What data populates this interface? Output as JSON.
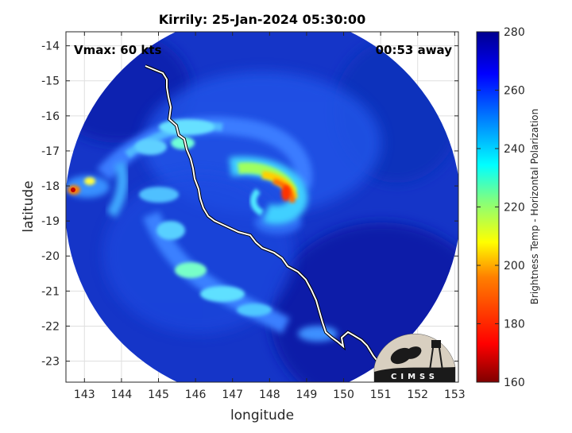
{
  "chart_data": {
    "type": "heatmap",
    "title": "Kirrily: 25-Jan-2024 05:30:00",
    "xlabel": "longitude",
    "ylabel": "latitude",
    "xlim": [
      142.5,
      153.1
    ],
    "ylim": [
      -23.6,
      -13.6
    ],
    "xticks": [
      143,
      144,
      145,
      146,
      147,
      148,
      149,
      150,
      151,
      152,
      153
    ],
    "yticks": [
      -14,
      -15,
      -16,
      -17,
      -18,
      -19,
      -20,
      -21,
      -22,
      -23
    ],
    "grid": true,
    "annotations": {
      "vmax": "Vmax: 60 kts",
      "time_away": "00:53 away"
    },
    "colorbar": {
      "label": "Brightness Temp - Horizontal Polarization",
      "min": 160,
      "max": 280,
      "ticks": [
        160,
        180,
        200,
        220,
        240,
        260,
        280
      ]
    },
    "storm_center": {
      "lon": 148.2,
      "lat": -18.1
    },
    "swath_center": {
      "lon": 147.5,
      "lat": -18.5
    }
  },
  "logo": {
    "text": "CIMSS"
  },
  "colors": {
    "background_low": "#1030c0",
    "coast": "#ffffff",
    "frame": "#000000"
  }
}
